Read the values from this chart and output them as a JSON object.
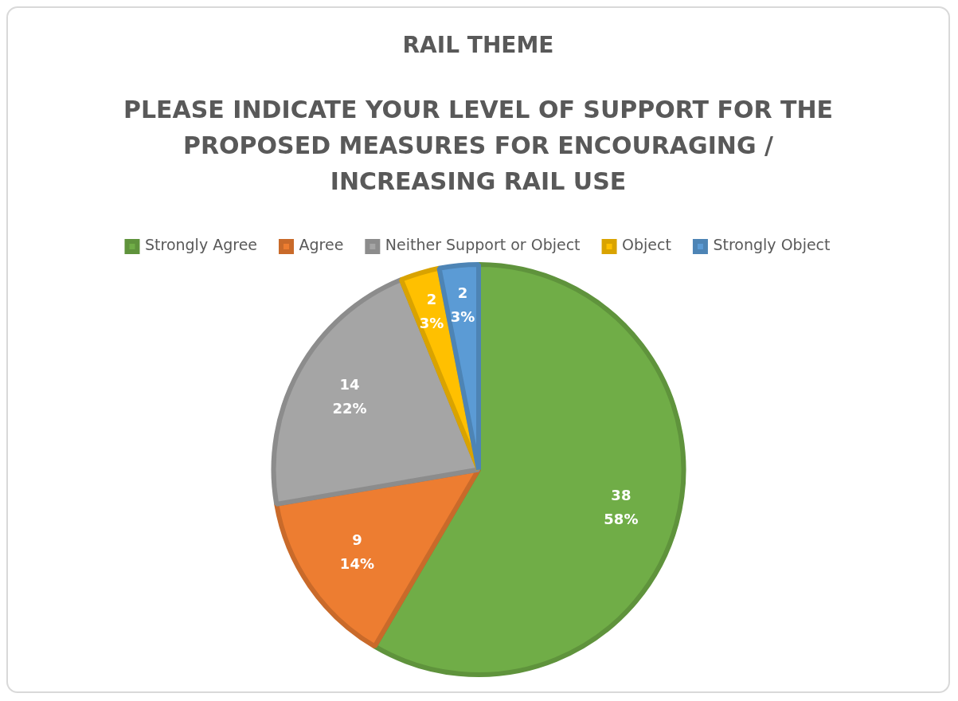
{
  "chart_data": {
    "type": "pie",
    "title": "RAIL THEME",
    "subtitle": "PLEASE INDICATE YOUR LEVEL OF SUPPORT FOR THE PROPOSED MEASURES FOR ENCOURAGING / INCREASING RAIL USE",
    "categories": [
      "Strongly Agree",
      "Agree",
      "Neither Support or Object",
      "Object",
      "Strongly Object"
    ],
    "values": [
      38,
      9,
      14,
      2,
      2
    ],
    "colors": [
      "#70ad47",
      "#ed7d31",
      "#a5a5a5",
      "#ffc000",
      "#5b9bd5"
    ],
    "value_labels": [
      "38\n58%",
      "9\n14%",
      "14\n22%",
      "2\n3%",
      "2\n3%"
    ],
    "legend": "top"
  }
}
